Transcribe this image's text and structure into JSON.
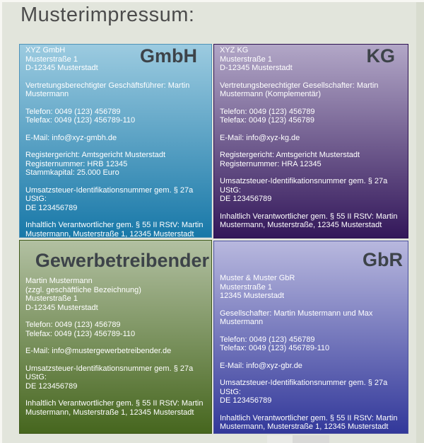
{
  "page": {
    "title": "Musterimpressum:"
  },
  "colors": {
    "page_background": "#e2e5dc",
    "frame_light": "#f7f7f3",
    "frame_shade": "#d8dccf",
    "title_text": "#4c4c4c",
    "heading_text": "#3d4349",
    "body_text": "#ffffff"
  },
  "panels": {
    "gmbh": {
      "heading": "GmbH",
      "colors": {
        "top": "#9ccbe0",
        "bottom": "#1878a8",
        "border": "#4f93b8"
      },
      "paragraphs": [
        "XYZ GmbH\nMusterstraße 1\nD-12345 Musterstadt",
        "Vertretungsberechtigter Geschäftsführer: Martin\nMustermann",
        "Telefon: 0049 (123) 456789\nTelefax: 0049 (123) 456789-110",
        "E-Mail: info@xyz-gmbh.de",
        "Registergericht: Amtsgericht Musterstadt\nRegisternummer: HRB 12345\nStammkapital: 25.000 Euro",
        "Umsatzsteuer-Identifikationsnummer gem. § 27a UStG:\nDE 123456789",
        "Inhaltlich Verantwortlicher gem. § 55 II RStV: Martin\nMustermann, Musterstraße 1, 12345 Musterstadt"
      ]
    },
    "kg": {
      "heading": "KG",
      "colors": {
        "top": "#b2a7c7",
        "bottom": "#33175a",
        "border": "#2d1150"
      },
      "paragraphs": [
        "XYZ KG\nMusterstraße 1\nD-12345 Musterstadt",
        "Vertretungsberechtigter Gesellschafter: Martin\nMustermann (Komplementär)",
        "Telefon: 0049 (123) 456789\nTelefax: 0049 (123) 456789",
        "E-Mail: info@xyz-kg.de",
        "Registergericht: Amtsgericht Musterstadt\nRegisternummer: HRA 12345",
        "Umsatzsteuer-Identifikationsnummer gem. § 27a UStG:\nDE 123456789",
        "Inhaltlich Verantwortlicher gem. § 55 II RStV: Martin\nMustermann, Musterstraße, 12345 Musterstadt"
      ]
    },
    "gewerbetreibender": {
      "heading": "Gewerbetreibender",
      "colors": {
        "top": "#b2c0a2",
        "bottom": "#46661e",
        "border": "#3f5a1c"
      },
      "paragraphs": [
        "Martin Mustermann\n(zzgl. geschäftliche Bezeichnung)\nMusterstraße 1\nD-12345 Musterstadt",
        "Telefon: 0049 (123) 456789\nTelefax: 0049 (123) 456789-110",
        "E-Mail: info@mustergewerbetreibender.de",
        "Umsatzsteuer-Identifikationsnummer gem. § 27a UStG:\nDE 123456789",
        "Inhaltlich Verantwortlicher gem. § 55 II RStV: Martin\nMustermann, Musterstraße 1, 12345 Musterstadt"
      ]
    },
    "gbr": {
      "heading": "GbR",
      "colors": {
        "top": "#b8b8de",
        "bottom": "#32389a",
        "border": "#4a4f9c"
      },
      "paragraphs": [
        "Muster & Muster GbR\nMusterstraße 1\n12345 Musterstadt",
        "Gesellschafter: Martin Mustermann und Max\nMustermann",
        "Telefon: 0049 (123) 456789\nTelefax: 0049 (123) 456789-110",
        "E-Mail: info@xyz-gbr.de",
        "Umsatzsteuer-Identifikationsnummer gem. § 27a UStG:\nDE 123456789",
        "Inhaltlich Verantwortlicher gem. § 55 II RStV: Martin\nMustermann, Musterstraße 1, 12345 Musterstadt"
      ]
    }
  }
}
